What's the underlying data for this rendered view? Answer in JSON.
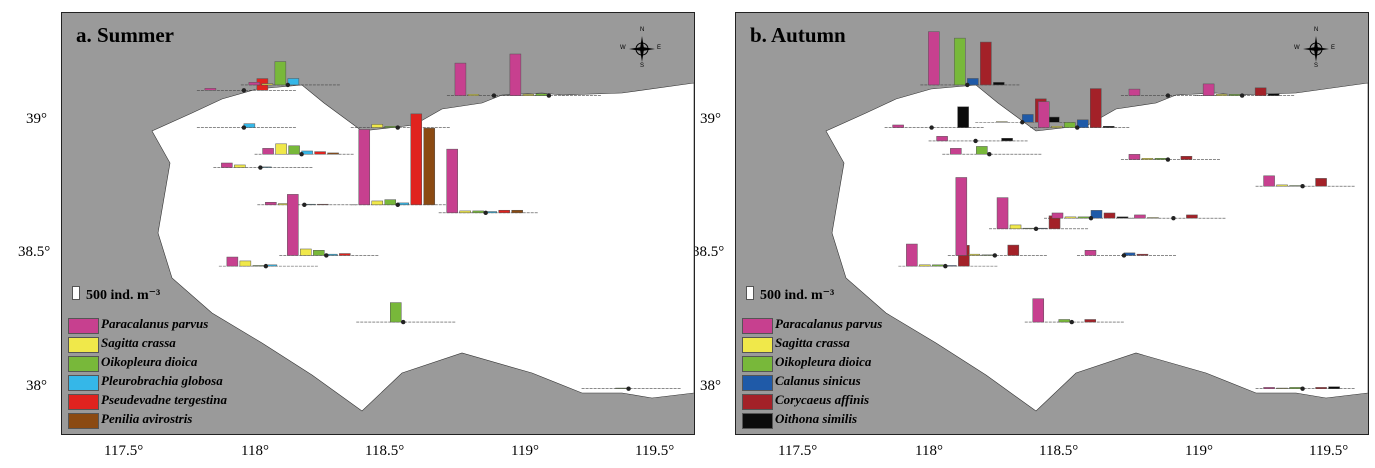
{
  "colors": {
    "land": "#9a9a9a",
    "sea": "#ffffff",
    "Paracalanus parvus": "#c7408f",
    "Sagitta crassa": "#f0e84a",
    "Oikopleura dioica": "#78b83a",
    "Pleurobrachia globosa": "#35b7e8",
    "Pseudevadne tergestina": "#e0231f",
    "Penilia avirostris": "#8b4a12",
    "Calanus sinicus": "#1f5aa8",
    "Corycaeus affinis": "#a32128",
    "Oithona similis": "#0b0b0b"
  },
  "scale_label": "500 ind. m⁻³",
  "latitude_ticks": [
    "39°",
    "38.5°",
    "38°"
  ],
  "longitude_ticks": [
    "117.5°",
    "118°",
    "118.5°",
    "119°",
    "119.5°"
  ],
  "compass": {
    "N": "N",
    "S": "S",
    "E": "E",
    "W": "W"
  },
  "panels": [
    {
      "title": "a. Summer",
      "legend": [
        "Paracalanus parvus",
        "Sagitta crassa",
        "Oikopleura dioica",
        "Pleurobrachia globosa",
        "Pseudevadne tergestina",
        "Penilia avirostris"
      ],
      "stations": [
        {
          "lon": 117.72,
          "lat": 39.11,
          "values": [
            0.15,
            0,
            0,
            0,
            0.9,
            0
          ]
        },
        {
          "lon": 117.88,
          "lat": 39.13,
          "values": [
            0.2,
            0.1,
            1.8,
            0.5,
            0,
            0
          ]
        },
        {
          "lon": 117.72,
          "lat": 38.97,
          "values": [
            0,
            0,
            0,
            0.3,
            0,
            0
          ]
        },
        {
          "lon": 117.78,
          "lat": 38.82,
          "values": [
            0.35,
            0.2,
            0,
            0.05,
            0,
            0
          ]
        },
        {
          "lon": 117.93,
          "lat": 38.87,
          "values": [
            0.45,
            0.8,
            0.65,
            0.25,
            0.2,
            0.1
          ]
        },
        {
          "lon": 117.94,
          "lat": 38.68,
          "values": [
            0.2,
            0.1,
            0,
            0.05,
            0.05,
            0
          ]
        },
        {
          "lon": 117.8,
          "lat": 38.45,
          "values": [
            0.7,
            0.4,
            0.05,
            0.1,
            0,
            0
          ]
        },
        {
          "lon": 118.02,
          "lat": 38.49,
          "values": [
            4.7,
            0.5,
            0.4,
            0.1,
            0.15,
            0
          ]
        },
        {
          "lon": 118.28,
          "lat": 38.97,
          "values": [
            0,
            0.25,
            0.1,
            0,
            0,
            0
          ]
        },
        {
          "lon": 118.28,
          "lat": 38.68,
          "values": [
            5.8,
            0.3,
            0.4,
            0.15,
            7.0,
            5.9
          ]
        },
        {
          "lon": 118.6,
          "lat": 38.65,
          "values": [
            4.9,
            0.15,
            0.15,
            0.1,
            0.2,
            0.2
          ]
        },
        {
          "lon": 118.63,
          "lat": 39.09,
          "values": [
            2.5,
            0.1,
            0,
            0,
            0,
            0
          ]
        },
        {
          "lon": 118.83,
          "lat": 39.09,
          "values": [
            3.2,
            0.1,
            0.15,
            0,
            0,
            0
          ]
        },
        {
          "lon": 118.3,
          "lat": 38.24,
          "values": [
            0,
            0,
            1.5,
            0,
            0,
            0
          ]
        },
        {
          "lon": 119.12,
          "lat": 37.99,
          "values": [
            0,
            0,
            0.05,
            0,
            0,
            0
          ]
        }
      ]
    },
    {
      "title": "b. Autumn",
      "legend": [
        "Paracalanus parvus",
        "Sagitta crassa",
        "Oikopleura dioica",
        "Calanus sinicus",
        "Corycaeus affinis",
        "Oithona similis"
      ],
      "stations": [
        {
          "lon": 117.77,
          "lat": 38.97,
          "values": [
            0.2,
            0,
            0,
            0,
            0,
            1.6
          ]
        },
        {
          "lon": 117.9,
          "lat": 39.13,
          "values": [
            4.1,
            0,
            3.6,
            0.5,
            3.3,
            0.2
          ]
        },
        {
          "lon": 117.93,
          "lat": 38.92,
          "values": [
            0.35,
            0,
            0,
            0,
            0,
            0.2
          ]
        },
        {
          "lon": 117.98,
          "lat": 38.87,
          "values": [
            0.45,
            0,
            0.6,
            0,
            0,
            0
          ]
        },
        {
          "lon": 117.82,
          "lat": 38.45,
          "values": [
            1.7,
            0.1,
            0.1,
            0.05,
            1.6,
            0
          ]
        },
        {
          "lon": 118.0,
          "lat": 38.49,
          "values": [
            6.0,
            0.1,
            0.05,
            0,
            0.8,
            0
          ]
        },
        {
          "lon": 118.15,
          "lat": 38.59,
          "values": [
            2.4,
            0.3,
            0.05,
            0.05,
            1.0,
            0
          ]
        },
        {
          "lon": 118.1,
          "lat": 38.99,
          "values": [
            0,
            0.05,
            0,
            0.6,
            1.8,
            0.4
          ]
        },
        {
          "lon": 118.3,
          "lat": 38.97,
          "values": [
            2.0,
            0.1,
            0.4,
            0.6,
            3.0,
            0.1
          ]
        },
        {
          "lon": 118.35,
          "lat": 38.63,
          "values": [
            0.4,
            0.1,
            0.1,
            0.6,
            0.4,
            0.1
          ]
        },
        {
          "lon": 118.65,
          "lat": 38.63,
          "values": [
            0.25,
            0.05,
            0,
            0,
            0.25,
            0
          ]
        },
        {
          "lon": 118.47,
          "lat": 38.49,
          "values": [
            0.4,
            0,
            0,
            0.2,
            0.1,
            0
          ]
        },
        {
          "lon": 118.63,
          "lat": 38.85,
          "values": [
            0.4,
            0.1,
            0.1,
            0,
            0.25,
            0
          ]
        },
        {
          "lon": 118.63,
          "lat": 39.09,
          "values": [
            0.5,
            0,
            0,
            0,
            0,
            0
          ]
        },
        {
          "lon": 118.9,
          "lat": 39.09,
          "values": [
            0.9,
            0.1,
            0.1,
            0,
            0.6,
            0.15
          ]
        },
        {
          "lon": 118.28,
          "lat": 38.24,
          "values": [
            1.8,
            0,
            0.2,
            0,
            0.2,
            0
          ]
        },
        {
          "lon": 119.12,
          "lat": 38.75,
          "values": [
            0.8,
            0.1,
            0.05,
            0,
            0.6,
            0
          ]
        },
        {
          "lon": 119.12,
          "lat": 37.99,
          "values": [
            0.1,
            0.05,
            0.1,
            0,
            0.1,
            0.15
          ]
        }
      ]
    }
  ]
}
